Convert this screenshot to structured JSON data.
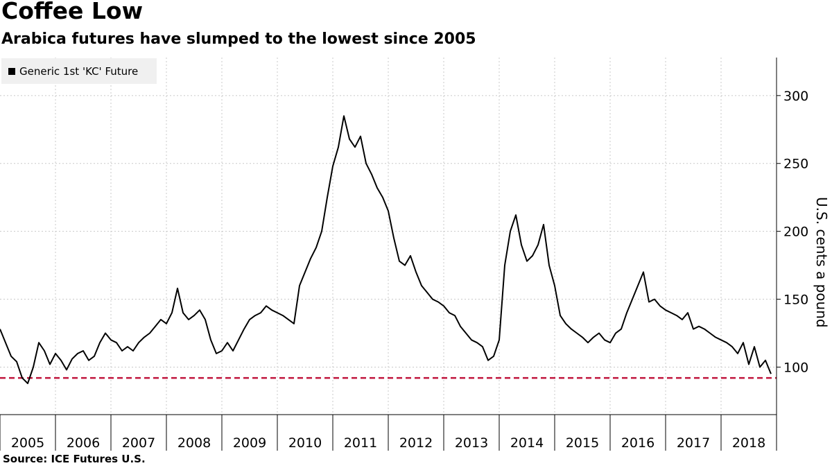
{
  "chart_data": {
    "type": "line",
    "title": "Coffee Low",
    "subtitle": "Arabica futures have slumped to the lowest since 2005",
    "ylabel": "U.S. cents a pound",
    "source": "Source: ICE Futures U.S.",
    "legend": [
      "Generic 1st 'KC' Future"
    ],
    "legend_placement": "top-left",
    "grid": true,
    "y_axis_side": "right",
    "ylim": [
      65,
      328
    ],
    "yticks": [
      100,
      150,
      200,
      250,
      300
    ],
    "xlim": [
      2005.0,
      2019.0
    ],
    "x_tick_labels": [
      "2005",
      "2006",
      "2007",
      "2008",
      "2009",
      "2010",
      "2011",
      "2012",
      "2013",
      "2014",
      "2015",
      "2016",
      "2017",
      "2018"
    ],
    "reference_line": {
      "value": 92,
      "style": "dashed",
      "color": "#c0143c"
    },
    "series": [
      {
        "name": "Generic 1st 'KC' Future",
        "color": "#000000",
        "x": [
          2005.0,
          2005.1,
          2005.2,
          2005.3,
          2005.4,
          2005.5,
          2005.6,
          2005.7,
          2005.8,
          2005.9,
          2006.0,
          2006.1,
          2006.2,
          2006.3,
          2006.4,
          2006.5,
          2006.6,
          2006.7,
          2006.8,
          2006.9,
          2007.0,
          2007.1,
          2007.2,
          2007.3,
          2007.4,
          2007.5,
          2007.6,
          2007.7,
          2007.8,
          2007.9,
          2008.0,
          2008.1,
          2008.2,
          2008.3,
          2008.4,
          2008.5,
          2008.6,
          2008.7,
          2008.8,
          2008.9,
          2009.0,
          2009.1,
          2009.2,
          2009.3,
          2009.4,
          2009.5,
          2009.6,
          2009.7,
          2009.8,
          2009.9,
          2010.0,
          2010.1,
          2010.2,
          2010.3,
          2010.4,
          2010.5,
          2010.6,
          2010.7,
          2010.8,
          2010.9,
          2011.0,
          2011.1,
          2011.2,
          2011.3,
          2011.4,
          2011.5,
          2011.6,
          2011.7,
          2011.8,
          2011.9,
          2012.0,
          2012.1,
          2012.2,
          2012.3,
          2012.4,
          2012.5,
          2012.6,
          2012.7,
          2012.8,
          2012.9,
          2013.0,
          2013.1,
          2013.2,
          2013.3,
          2013.4,
          2013.5,
          2013.6,
          2013.7,
          2013.8,
          2013.9,
          2014.0,
          2014.1,
          2014.2,
          2014.3,
          2014.4,
          2014.5,
          2014.6,
          2014.7,
          2014.8,
          2014.9,
          2015.0,
          2015.1,
          2015.2,
          2015.3,
          2015.4,
          2015.5,
          2015.6,
          2015.7,
          2015.8,
          2015.9,
          2016.0,
          2016.1,
          2016.2,
          2016.3,
          2016.4,
          2016.5,
          2016.6,
          2016.7,
          2016.8,
          2016.9,
          2017.0,
          2017.1,
          2017.2,
          2017.3,
          2017.4,
          2017.5,
          2017.6,
          2017.7,
          2017.8,
          2017.9,
          2018.0,
          2018.1,
          2018.2,
          2018.3,
          2018.4,
          2018.5,
          2018.6,
          2018.7,
          2018.8,
          2018.9
        ],
        "values": [
          128,
          118,
          108,
          104,
          92,
          88,
          100,
          118,
          112,
          102,
          110,
          105,
          98,
          106,
          110,
          112,
          105,
          108,
          118,
          125,
          120,
          118,
          112,
          115,
          112,
          118,
          122,
          125,
          130,
          135,
          132,
          140,
          158,
          140,
          135,
          138,
          142,
          135,
          120,
          110,
          112,
          118,
          112,
          120,
          128,
          135,
          138,
          140,
          145,
          142,
          140,
          138,
          135,
          132,
          160,
          170,
          180,
          188,
          200,
          225,
          248,
          262,
          285,
          268,
          262,
          270,
          250,
          242,
          232,
          225,
          215,
          195,
          178,
          175,
          182,
          170,
          160,
          155,
          150,
          148,
          145,
          140,
          138,
          130,
          125,
          120,
          118,
          115,
          105,
          108,
          120,
          175,
          200,
          212,
          190,
          178,
          182,
          190,
          205,
          175,
          160,
          138,
          132,
          128,
          125,
          122,
          118,
          122,
          125,
          120,
          118,
          125,
          128,
          140,
          150,
          160,
          170,
          148,
          150,
          145,
          142,
          140,
          138,
          135,
          140,
          128,
          130,
          128,
          125,
          122,
          120,
          118,
          115,
          110,
          118,
          102,
          115,
          100,
          105,
          95
        ]
      }
    ]
  }
}
